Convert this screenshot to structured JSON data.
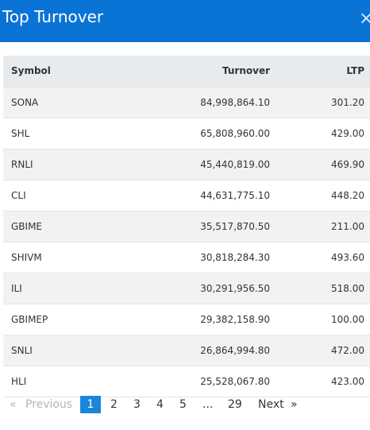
{
  "header": {
    "title": "Top Turnover",
    "close_glyph": "×"
  },
  "table": {
    "columns": [
      "Symbol",
      "Turnover",
      "LTP"
    ],
    "rows": [
      {
        "symbol": "SONA",
        "turnover": "84,998,864.10",
        "ltp": "301.20"
      },
      {
        "symbol": "SHL",
        "turnover": "65,808,960.00",
        "ltp": "429.00"
      },
      {
        "symbol": "RNLI",
        "turnover": "45,440,819.00",
        "ltp": "469.90"
      },
      {
        "symbol": "CLI",
        "turnover": "44,631,775.10",
        "ltp": "448.20"
      },
      {
        "symbol": "GBIME",
        "turnover": "35,517,870.50",
        "ltp": "211.00"
      },
      {
        "symbol": "SHIVM",
        "turnover": "30,818,284.30",
        "ltp": "493.60"
      },
      {
        "symbol": "ILI",
        "turnover": "30,291,956.50",
        "ltp": "518.00"
      },
      {
        "symbol": "GBIMEP",
        "turnover": "29,382,158.90",
        "ltp": "100.00"
      },
      {
        "symbol": "SNLI",
        "turnover": "26,864,994.80",
        "ltp": "472.00"
      },
      {
        "symbol": "HLI",
        "turnover": "25,528,067.80",
        "ltp": "423.00"
      }
    ]
  },
  "pagination": {
    "prev_arrow": "«",
    "prev_label": "Previous",
    "pages": [
      "1",
      "2",
      "3",
      "4",
      "5"
    ],
    "ellipsis": "...",
    "last_page": "29",
    "next_label": "Next",
    "next_arrow": "»",
    "current_page": "1"
  },
  "colors": {
    "header_bg": "#0a74d6",
    "active_page_bg": "#1a86d9"
  }
}
